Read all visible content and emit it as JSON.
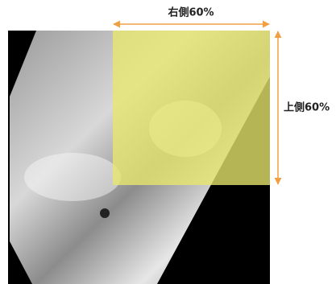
{
  "labels": {
    "right": "右側60%",
    "top": "上側60%"
  }
}
